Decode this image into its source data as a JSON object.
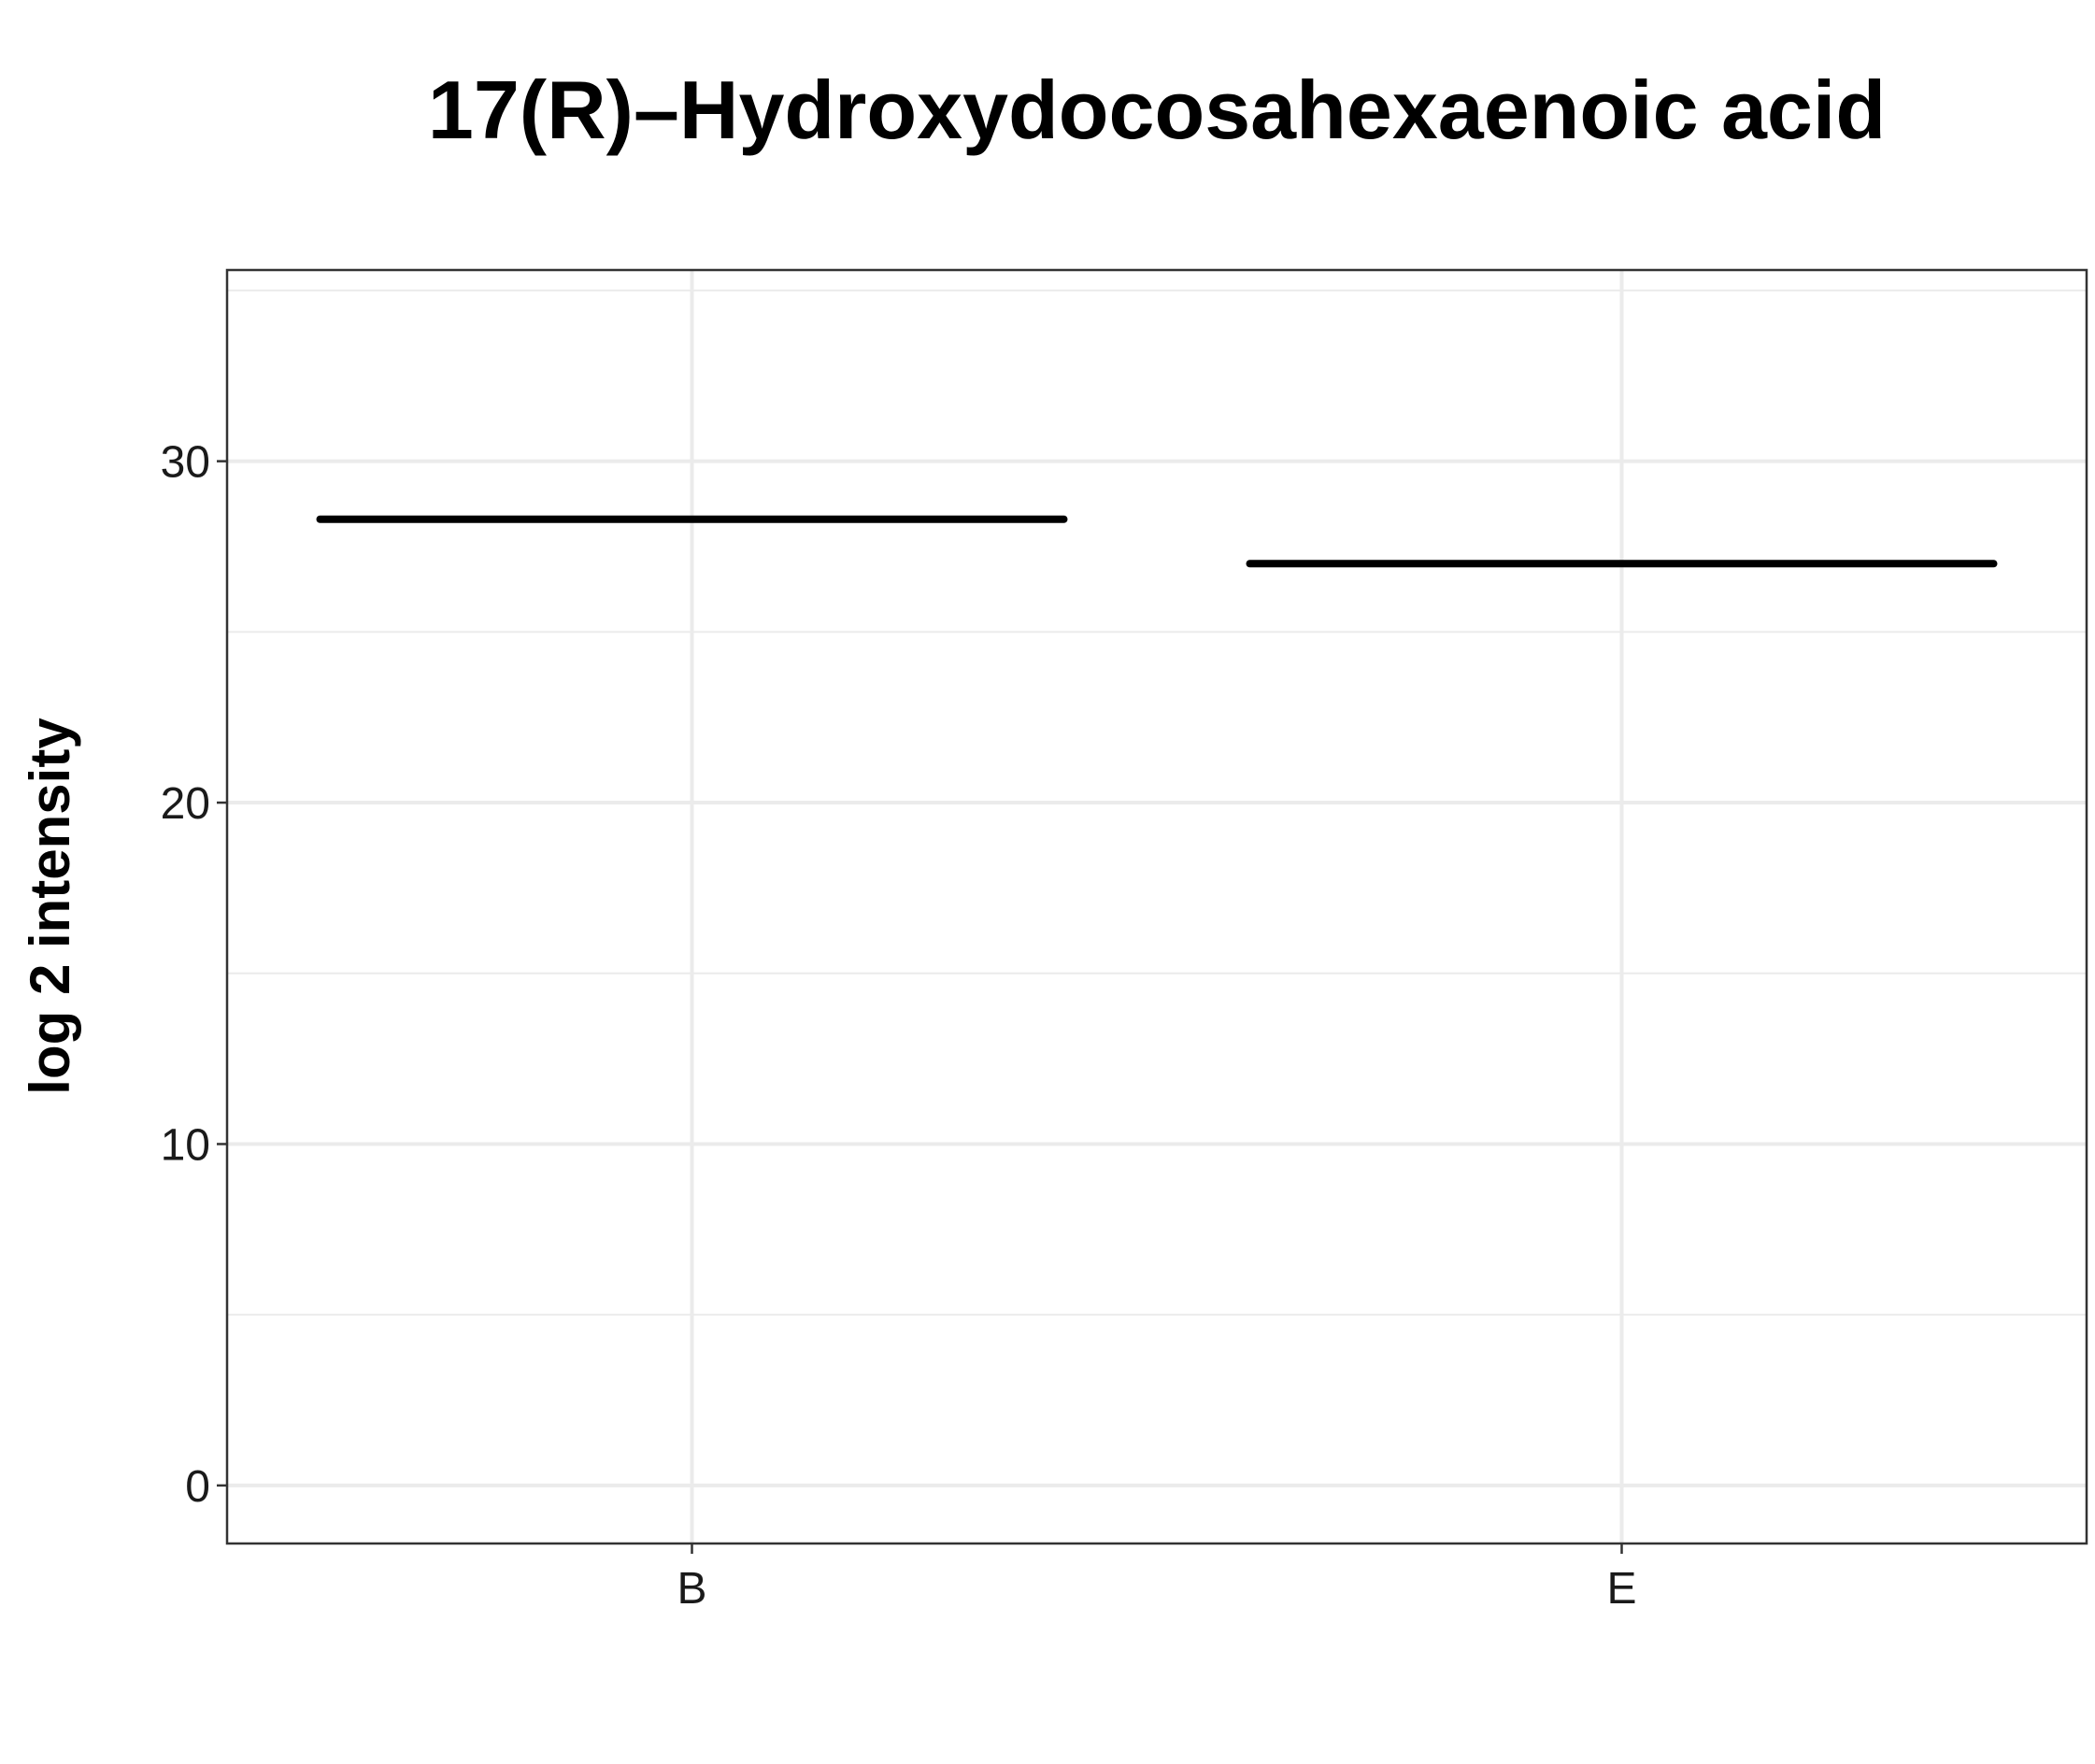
{
  "chart_data": {
    "type": "line",
    "title": "17(R)–Hydroxydocosahexaenoic acid",
    "xlabel": "",
    "ylabel": "log 2 intensity",
    "categories": [
      "B",
      "E"
    ],
    "values": [
      28.3,
      27.0
    ],
    "ylim": [
      -1.7,
      35.6
    ],
    "yticks": [
      0,
      10,
      20,
      30
    ],
    "ytick_labels": [
      "0",
      "10",
      "20",
      "30"
    ],
    "grid": true,
    "legend": "none",
    "mark_style": "horizontal segment per category",
    "colors": {
      "mark": "#000000",
      "grid": "#ebebeb",
      "border": "#333333"
    }
  }
}
